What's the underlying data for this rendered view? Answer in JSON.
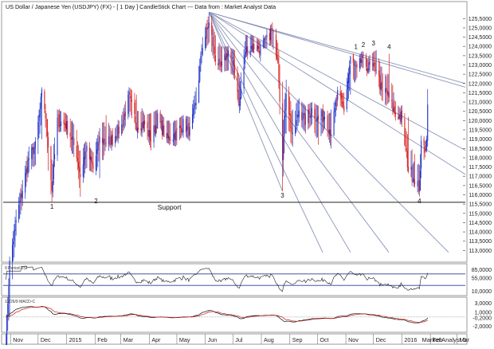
{
  "chart_data": {
    "type": "candlestick",
    "title": "US Dollar / Japanese Yen (USDJPY) (FX) -  [ 1 Day ] CandleStick Chart --- Data from : Market Analyst Data",
    "symbol": "USDJPY",
    "timeframe": "1 Day",
    "source_label": "Market Analyst 6",
    "x_axis": {
      "tick_labels": [
        "Nov",
        "Dec",
        "2015",
        "Feb",
        "Mar",
        "Apr",
        "May",
        "Jun",
        "Jul",
        "Aug",
        "Sep",
        "Oct",
        "Nov",
        "Dec",
        "2016",
        "Feb",
        "Mar"
      ],
      "start": "2014-10-24",
      "end": "2016-03-10"
    },
    "price_axis": {
      "ylim": [
        112.5,
        125.9
      ],
      "tick_labels": [
        "125,5000",
        "125,0000",
        "124,5000",
        "124,0000",
        "123,5000",
        "123,0000",
        "122,5000",
        "122,0000",
        "121,5000",
        "121,0000",
        "120,5000",
        "120,0000",
        "119,5000",
        "119,0000",
        "118,5000",
        "118,0000",
        "117,5000",
        "117,0000",
        "116,5000",
        "116,0000",
        "115,5000",
        "115,0000",
        "114,5000",
        "114,0000",
        "113,5000",
        "113,0000"
      ]
    },
    "price_series_approx": {
      "dates": [
        "2014-10-27",
        "2014-10-31",
        "2014-11-07",
        "2014-11-14",
        "2014-11-21",
        "2014-11-28",
        "2014-12-05",
        "2014-12-08",
        "2014-12-12",
        "2014-12-16",
        "2014-12-22",
        "2014-12-31",
        "2015-01-07",
        "2015-01-12",
        "2015-01-16",
        "2015-01-22",
        "2015-01-30",
        "2015-02-06",
        "2015-02-13",
        "2015-02-20",
        "2015-03-02",
        "2015-03-10",
        "2015-03-18",
        "2015-03-27",
        "2015-04-03",
        "2015-04-10",
        "2015-04-20",
        "2015-04-30",
        "2015-05-08",
        "2015-05-15",
        "2015-05-22",
        "2015-05-29",
        "2015-06-05",
        "2015-06-12",
        "2015-06-18",
        "2015-06-26",
        "2015-07-03",
        "2015-07-08",
        "2015-07-15",
        "2015-07-22",
        "2015-07-31",
        "2015-08-07",
        "2015-08-12",
        "2015-08-19",
        "2015-08-24",
        "2015-08-28",
        "2015-09-04",
        "2015-09-11",
        "2015-09-18",
        "2015-09-25",
        "2015-10-02",
        "2015-10-09",
        "2015-10-16",
        "2015-10-23",
        "2015-10-30",
        "2015-11-06",
        "2015-11-13",
        "2015-11-18",
        "2015-11-25",
        "2015-12-01",
        "2015-12-04",
        "2015-12-10",
        "2015-12-15",
        "2015-12-18",
        "2015-12-24",
        "2015-12-31",
        "2016-01-08",
        "2016-01-15",
        "2016-01-20",
        "2016-01-22",
        "2016-01-26",
        "2016-01-28",
        "2016-01-29"
      ],
      "close": [
        108.2,
        112.3,
        114.6,
        116.3,
        118.0,
        118.6,
        121.4,
        120.7,
        118.8,
        116.3,
        120.0,
        119.8,
        119.0,
        118.2,
        117.0,
        118.5,
        117.4,
        119.0,
        118.9,
        119.0,
        119.7,
        121.3,
        119.8,
        119.8,
        119.0,
        120.1,
        119.0,
        119.3,
        119.8,
        119.4,
        121.0,
        124.1,
        125.2,
        123.4,
        122.8,
        123.8,
        122.8,
        120.8,
        123.8,
        124.0,
        123.9,
        124.3,
        124.9,
        123.4,
        118.2,
        121.7,
        119.0,
        120.6,
        120.0,
        120.6,
        120.0,
        120.3,
        119.3,
        121.4,
        120.6,
        123.3,
        122.6,
        123.3,
        122.9,
        122.8,
        122.9,
        121.5,
        121.6,
        121.2,
        120.4,
        120.2,
        117.4,
        116.9,
        116.4,
        118.6,
        118.5,
        118.9,
        121.2
      ],
      "high": [
        108.5,
        112.5,
        115.2,
        116.8,
        118.6,
        118.9,
        121.8,
        121.4,
        119.4,
        117.9,
        120.6,
        120.4,
        120.0,
        119.5,
        118.4,
        118.9,
        118.3,
        119.6,
        120.3,
        119.3,
        120.3,
        121.8,
        121.4,
        120.3,
        120.4,
        120.6,
        120.0,
        120.0,
        120.3,
        120.2,
        121.8,
        124.5,
        125.8,
        124.6,
        124.0,
        124.0,
        123.8,
        122.3,
        124.6,
        124.6,
        124.3,
        124.6,
        125.2,
        124.2,
        122.1,
        122.2,
        120.6,
        121.2,
        120.8,
        121.0,
        120.8,
        120.5,
        120.6,
        121.5,
        121.5,
        123.4,
        123.2,
        123.7,
        123.3,
        123.7,
        123.8,
        122.9,
        122.4,
        123.6,
        121.1,
        120.6,
        120.2,
        118.2,
        117.6,
        118.9,
        118.9,
        119.0,
        121.7
      ],
      "low": [
        107.9,
        109.4,
        113.8,
        115.4,
        117.2,
        117.6,
        119.0,
        120.4,
        117.3,
        115.6,
        119.4,
        119.4,
        118.2,
        117.8,
        115.9,
        117.4,
        117.2,
        116.9,
        118.6,
        118.6,
        119.2,
        120.2,
        119.8,
        119.4,
        118.4,
        119.9,
        118.8,
        118.6,
        119.3,
        118.9,
        120.6,
        123.5,
        124.2,
        123.0,
        122.6,
        122.7,
        122.2,
        120.4,
        123.4,
        123.7,
        123.9,
        123.9,
        124.1,
        123.1,
        116.2,
        119.3,
        118.6,
        119.9,
        119.3,
        119.8,
        118.7,
        119.6,
        118.5,
        120.9,
        120.6,
        121.4,
        122.3,
        122.9,
        122.6,
        122.7,
        122.5,
        121.1,
        120.8,
        121.0,
        120.3,
        120.0,
        117.3,
        116.5,
        115.9,
        116.9,
        118.2,
        118.7,
        118.6
      ]
    },
    "annotations": {
      "support": {
        "label": "Support",
        "price": 115.6
      },
      "swing_labels": [
        {
          "text": "1",
          "date": "2014-12-16",
          "price": 115.6
        },
        {
          "text": "2",
          "date": "2015-02-02",
          "price": 115.9
        },
        {
          "text": "3",
          "date": "2015-08-24",
          "price": 116.2
        },
        {
          "text": "4",
          "date": "2016-01-20",
          "price": 115.9
        },
        {
          "text": "1",
          "date": "2015-11-12",
          "price": 123.6
        },
        {
          "text": "2",
          "date": "2015-11-20",
          "price": 123.7
        },
        {
          "text": "3",
          "date": "2015-12-01",
          "price": 123.8
        },
        {
          "text": "4",
          "date": "2015-12-18",
          "price": 123.6
        }
      ]
    },
    "rsi_panel": {
      "label": "9 Period RSI",
      "tick_labels": [
        "85,0000",
        "55,0000",
        "10,0000"
      ]
    },
    "macd_panel": {
      "label": "12/26/9 MACD-C",
      "tick_labels": [
        "3,0000",
        "1,0000",
        "-0,2000",
        "-2,0000"
      ]
    },
    "colors": {
      "bull_candle": "#1f33c6",
      "bear_candle": "#d51f1f",
      "fan_line": "#8b95b8",
      "panel_text": "#333333"
    }
  }
}
